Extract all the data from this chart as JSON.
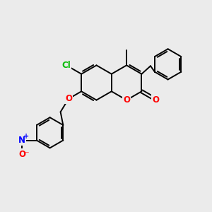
{
  "bg_color": "#ebebeb",
  "bond_color": "#000000",
  "bond_lw": 1.4,
  "O_color": "#ff0000",
  "N_color": "#0000ff",
  "Cl_color": "#00bb00",
  "font_size": 8.5,
  "fig_w": 3.0,
  "fig_h": 3.0,
  "dpi": 100,
  "xlim": [
    0,
    10
  ],
  "ylim": [
    0,
    10
  ]
}
